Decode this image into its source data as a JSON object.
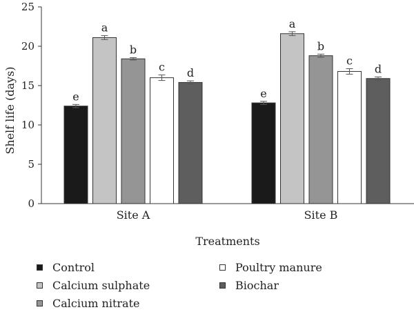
{
  "chart_data": {
    "type": "bar",
    "title": "",
    "xlabel": "Treatments",
    "ylabel": "Shelf life (days)",
    "ylim": [
      0,
      25
    ],
    "yticks": [
      0,
      5,
      10,
      15,
      20,
      25
    ],
    "categories": [
      "Site A",
      "Site B"
    ],
    "series": [
      {
        "name": "Control",
        "color": "#1a1a1a",
        "values": [
          12.4,
          12.8
        ],
        "errors": [
          0.2,
          0.2
        ],
        "letters": [
          "e",
          "e"
        ]
      },
      {
        "name": "Calcium sulphate",
        "color": "#c4c4c4",
        "values": [
          21.1,
          21.6
        ],
        "errors": [
          0.25,
          0.25
        ],
        "letters": [
          "a",
          "a"
        ]
      },
      {
        "name": "Calcium nitrate",
        "color": "#959595",
        "values": [
          18.4,
          18.8
        ],
        "errors": [
          0.15,
          0.2
        ],
        "letters": [
          "b",
          "b"
        ]
      },
      {
        "name": "Poultry manure",
        "color": "#ffffff",
        "values": [
          16.0,
          16.8
        ],
        "errors": [
          0.35,
          0.35
        ],
        "letters": [
          "c",
          "c"
        ]
      },
      {
        "name": "Biochar",
        "color": "#5e5e5e",
        "values": [
          15.4,
          15.9
        ],
        "errors": [
          0.2,
          0.2
        ],
        "letters": [
          "d",
          "d"
        ]
      }
    ],
    "grid": false,
    "legend_position": "bottom"
  }
}
